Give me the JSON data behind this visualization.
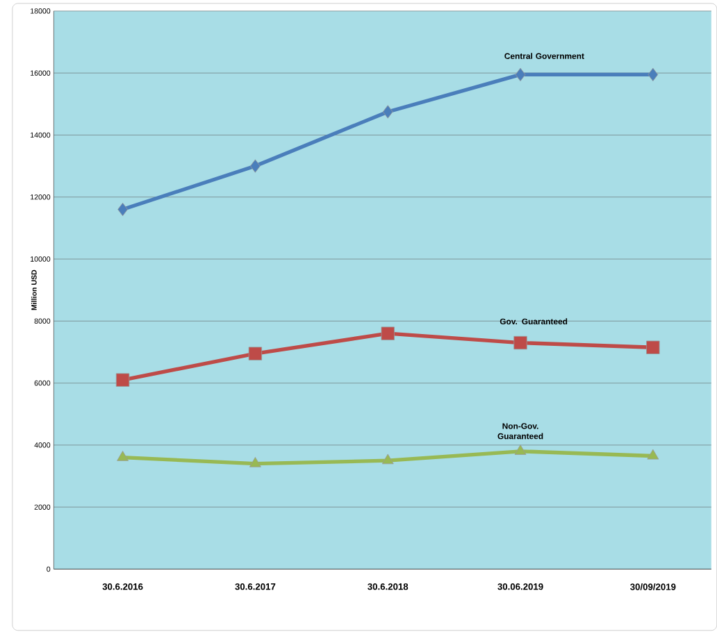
{
  "chart_data": {
    "type": "line",
    "ylabel": "Million USD",
    "categories": [
      "30.6.2016",
      "30.6.2017",
      "30.6.2018",
      "30.06.2019",
      "30/09/2019"
    ],
    "series": [
      {
        "name": "Central Government",
        "color": "#4a7ebb",
        "marker": "diamond",
        "values": [
          11600,
          13000,
          14750,
          15950,
          15950
        ]
      },
      {
        "name": "Gov. Guaranteed",
        "color": "#be4b48",
        "marker": "square",
        "values": [
          6100,
          6950,
          7600,
          7300,
          7150
        ]
      },
      {
        "name": "Non-Gov. Guaranteed",
        "color": "#98b954",
        "marker": "triangle",
        "values": [
          3600,
          3400,
          3500,
          3800,
          3650
        ]
      }
    ],
    "ylim": [
      0,
      18000
    ],
    "yticks": [
      0,
      2000,
      4000,
      6000,
      8000,
      10000,
      12000,
      14000,
      16000,
      18000
    ],
    "grid": "y",
    "legend": false
  }
}
